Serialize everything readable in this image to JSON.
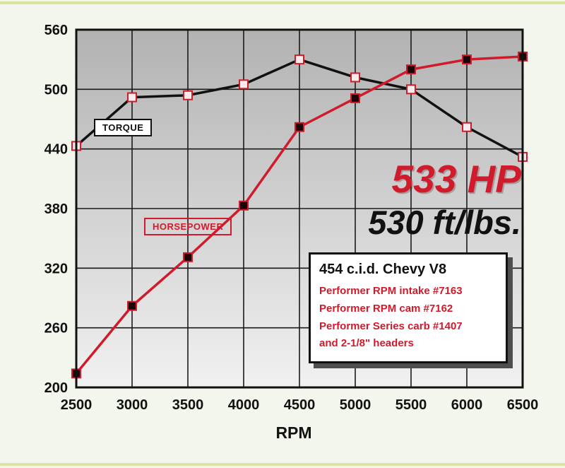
{
  "colors": {
    "background": "#f3f6ec",
    "accent_strip": "#dde4a2",
    "plot_gradient_top": "#b2b2b2",
    "plot_gradient_bottom": "#f1f1f1",
    "grid": "#1a1a1a",
    "axis_text": "#111111",
    "red": "#cf1b2b",
    "black": "#111111",
    "box_shadow": "#4e4e4e"
  },
  "labels": {
    "torque": "TORQUE",
    "horsepower": "HORSEPOWER",
    "hp_peak": "533 HP",
    "tq_peak": "530 ft/lbs."
  },
  "info_box": {
    "title": "454 c.i.d. Chevy V8",
    "lines": [
      "Performer RPM intake #7163",
      "Performer RPM cam #7162",
      "Performer Series carb #1407",
      "and 2-1/8\" headers"
    ]
  },
  "chart_data": {
    "type": "line",
    "title": "",
    "xlabel": "RPM",
    "ylabel": "",
    "ylim": [
      200,
      560
    ],
    "yticks": [
      200,
      260,
      320,
      380,
      440,
      500,
      560
    ],
    "xticks": [
      2500,
      3000,
      3500,
      4000,
      4500,
      5000,
      5500,
      6000,
      6500
    ],
    "grid": true,
    "x": [
      2500,
      3000,
      3500,
      4000,
      4500,
      5000,
      5500,
      6000,
      6500
    ],
    "series": [
      {
        "name": "torque",
        "label": "TORQUE",
        "values": [
          443,
          492,
          494,
          505,
          530,
          512,
          500,
          462,
          432
        ],
        "color": "#111111",
        "marker_fill": "#f6eceb",
        "marker_stroke": "#cf1b2b"
      },
      {
        "name": "horsepower",
        "label": "HORSEPOWER",
        "values": [
          214,
          282,
          331,
          383,
          462,
          491,
          520,
          530,
          533
        ],
        "color": "#cf1b2b",
        "marker_fill": "#1d0507",
        "marker_stroke": "#cf1b2b"
      }
    ]
  }
}
